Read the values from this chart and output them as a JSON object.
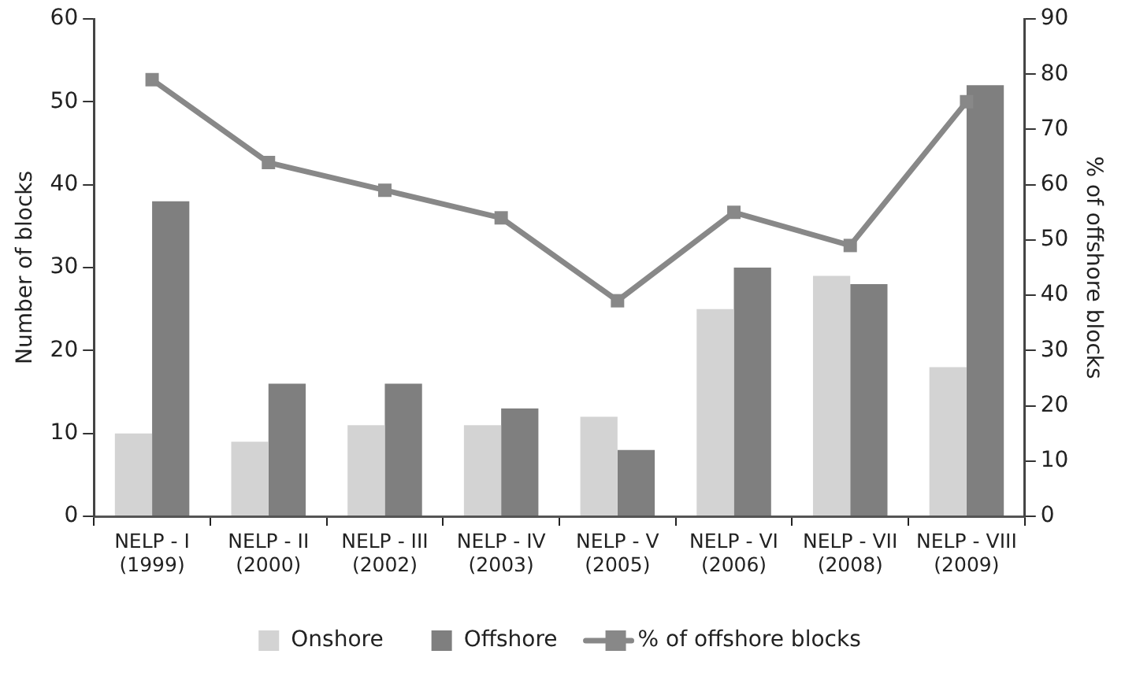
{
  "chart_data": {
    "type": "bar",
    "categories": [
      "NELP - I (1999)",
      "NELP - II (2000)",
      "NELP - III (2002)",
      "NELP - IV (2003)",
      "NELP - V (2005)",
      "NELP - VI (2006)",
      "NELP - VII (2008)",
      "NELP - VIII (2009)"
    ],
    "series": [
      {
        "name": "Onshore",
        "color": "#d3d3d3",
        "values": [
          10,
          9,
          11,
          11,
          12,
          25,
          29,
          18
        ]
      },
      {
        "name": "Offshore",
        "color": "#7f7f7f",
        "values": [
          38,
          16,
          16,
          13,
          8,
          30,
          28,
          52
        ]
      },
      {
        "name": "% of offshore blocks",
        "type": "line",
        "axis": "y2",
        "color": "#888888",
        "values": [
          79,
          64,
          59,
          54,
          39,
          55,
          49,
          75
        ]
      }
    ],
    "ylabel": "Number of blocks",
    "y2label": "% of offshore blocks",
    "ylim": [
      0,
      60
    ],
    "yticks": [
      0,
      10,
      20,
      30,
      40,
      50,
      60
    ],
    "y2lim": [
      0,
      90
    ],
    "y2ticks": [
      0,
      10,
      20,
      30,
      40,
      50,
      60,
      70,
      80,
      90
    ],
    "grid": false,
    "legend": "bottom",
    "marker": "square",
    "line_style": "solid"
  }
}
